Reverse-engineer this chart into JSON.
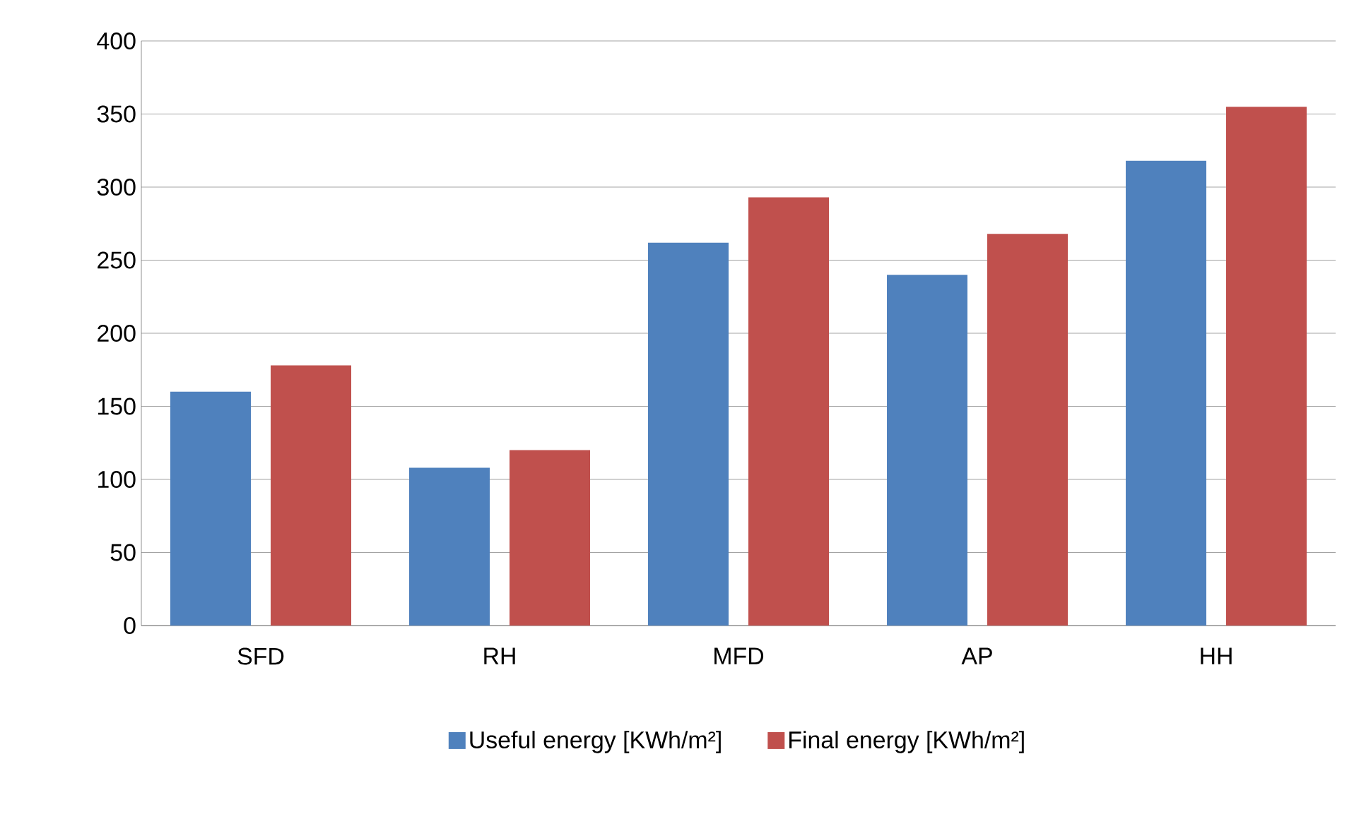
{
  "chart_data": {
    "type": "bar",
    "categories": [
      "SFD",
      "RH",
      "MFD",
      "AP",
      "HH"
    ],
    "series": [
      {
        "name": "Useful energy [KWh/m²]",
        "color": "#4f81bd",
        "values": [
          160,
          108,
          262,
          240,
          318
        ]
      },
      {
        "name": "Final energy [KWh/m²]",
        "color": "#c0504d",
        "values": [
          178,
          120,
          293,
          268,
          355
        ]
      }
    ],
    "ylim": [
      0,
      400
    ],
    "yticks": [
      0,
      50,
      100,
      150,
      200,
      250,
      300,
      350,
      400
    ],
    "grid": "y",
    "legend": "bottom"
  }
}
